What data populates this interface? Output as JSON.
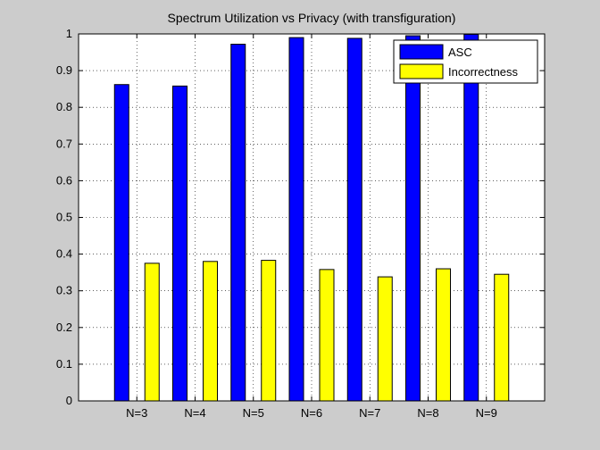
{
  "chart_data": {
    "type": "bar",
    "title": "Spectrum Utilization vs Privacy (with transfiguration)",
    "xlabel": "",
    "ylabel": "",
    "categories": [
      "N=3",
      "N=4",
      "N=5",
      "N=6",
      "N=7",
      "N=8",
      "N=9"
    ],
    "series": [
      {
        "name": "ASC",
        "color": "#0000ff",
        "values": [
          0.862,
          0.858,
          0.972,
          0.99,
          0.988,
          0.995,
          0.999
        ]
      },
      {
        "name": "Incorrectness",
        "color": "#ffff00",
        "values": [
          0.375,
          0.38,
          0.383,
          0.358,
          0.338,
          0.36,
          0.345
        ]
      }
    ],
    "ylim": [
      0,
      1
    ],
    "yticks": [
      "0",
      "0.1",
      "0.2",
      "0.3",
      "0.4",
      "0.5",
      "0.6",
      "0.7",
      "0.8",
      "0.9",
      "1"
    ],
    "grid": true,
    "legend_position": "top-right"
  }
}
